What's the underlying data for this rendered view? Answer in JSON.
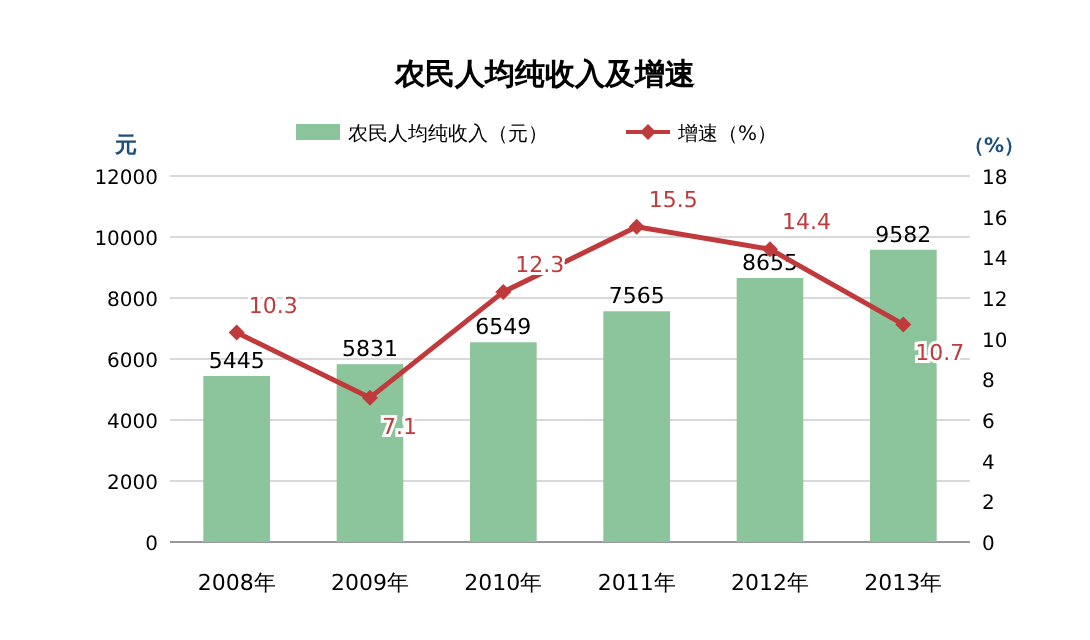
{
  "chart_data": {
    "type": "bar",
    "title": "农民人均纯收入及增速",
    "ylabel": "元",
    "y2label": "（%）",
    "categories": [
      "2008年",
      "2009年",
      "2010年",
      "2011年",
      "2012年",
      "2013年"
    ],
    "series": [
      {
        "name": "农民人均纯收入（元）",
        "color": "#8cc59b",
        "values": [
          5445,
          5831,
          6549,
          7565,
          8655,
          9582
        ]
      },
      {
        "name": "增速（%）",
        "type": "line",
        "axis": "y2",
        "color": "#c0393b",
        "marker": "diamond",
        "values": [
          10.3,
          7.1,
          12.3,
          15.5,
          14.4,
          10.7
        ]
      }
    ],
    "ylim": [
      0,
      12000
    ],
    "yticks": [
      0,
      2000,
      4000,
      6000,
      8000,
      10000,
      12000
    ],
    "y2lim": [
      0,
      18
    ],
    "y2ticks": [
      0,
      2,
      4,
      6,
      8,
      10,
      12,
      14,
      16,
      18
    ],
    "grid": "y",
    "legend": "top",
    "data_labels": true
  }
}
